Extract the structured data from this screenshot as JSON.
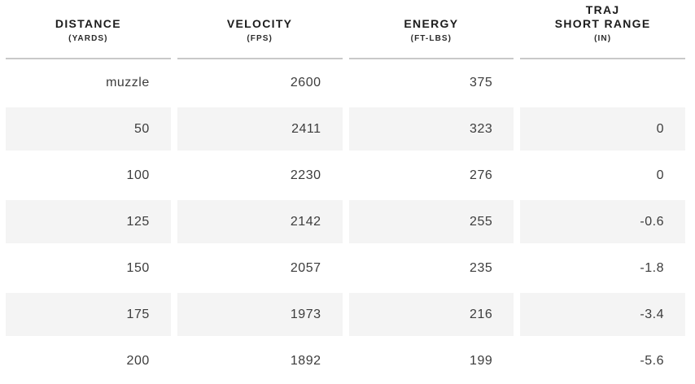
{
  "colors": {
    "background": "#ffffff",
    "stripe": "#f4f4f4",
    "divider": "#c9c9c9",
    "header_text": "#1c1c1c",
    "value_text": "#3c3c3c"
  },
  "chart_data": {
    "type": "table",
    "title": "",
    "columns": [
      {
        "line1": "",
        "label": "DISTANCE",
        "unit": "(YARDS)"
      },
      {
        "line1": "",
        "label": "VELOCITY",
        "unit": "(FPS)"
      },
      {
        "line1": "",
        "label": "ENERGY",
        "unit": "(FT-LBS)"
      },
      {
        "line1": "TRAJ",
        "label": "SHORT RANGE",
        "unit": "(IN)"
      }
    ],
    "rows": [
      [
        "muzzle",
        "2600",
        "375",
        ""
      ],
      [
        "50",
        "2411",
        "323",
        "0"
      ],
      [
        "100",
        "2230",
        "276",
        "0"
      ],
      [
        "125",
        "2142",
        "255",
        "-0.6"
      ],
      [
        "150",
        "2057",
        "235",
        "-1.8"
      ],
      [
        "175",
        "1973",
        "216",
        "-3.4"
      ],
      [
        "200",
        "1892",
        "199",
        "-5.6"
      ]
    ],
    "layout_hints": {
      "striped_row_indices": [
        1,
        3,
        5
      ],
      "value_alignment": "right",
      "header_alignment": "center"
    }
  }
}
